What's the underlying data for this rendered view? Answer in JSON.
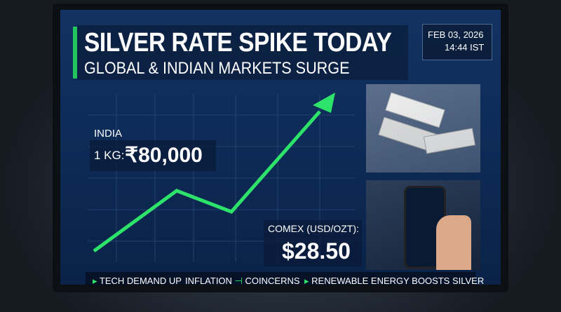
{
  "header": {
    "title": "SILVER RATE SPIKE TODAY",
    "subtitle": "GLOBAL & INDIAN MARKETS SURGE",
    "date": "FEB 03, 2026",
    "time": "14:44 IST"
  },
  "india": {
    "label": "INDIA",
    "unit": "1 KG:",
    "price": "₹80,000"
  },
  "comex": {
    "label": "COMEX (USD/OZT):",
    "price": "$28.50"
  },
  "ticker": [
    "TECH DEMAND UP",
    "INFLATION",
    "COINCERNS",
    "RENEWABLE ENERGY BOOSTS SILVER"
  ]
}
